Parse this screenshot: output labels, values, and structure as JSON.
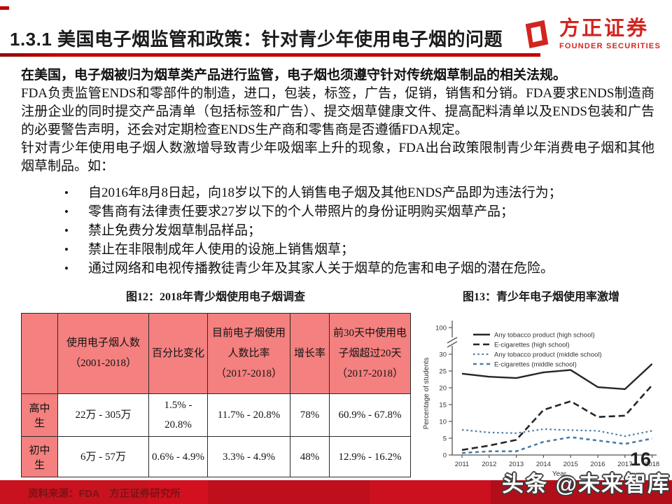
{
  "header": {
    "title": "1.3.1 美国电子烟监管和政策：针对青少年使用电子烟的问题",
    "accent_color": "#c00000",
    "logo": {
      "name": "方正证券",
      "subtitle": "FOUNDER SECURITIES",
      "color": "#d2251f"
    }
  },
  "body": {
    "lead": "在美国，电子烟被归为烟草类产品进行监管，电子烟也须遵守针对传统烟草制品的相关法规。",
    "para1": "FDA负责监管ENDS和零部件的制造，进口，包装，标签，广告，促销，销售和分销。FDA要求ENDS制造商注册企业的同时提交产品清单（包括标签和广告）、提交烟草健康文件、提高配料清单以及ENDS包装和广告的必要警告声明，还会对定期检查ENDS生产商和零售商是否遵循FDA规定。",
    "para2": "针对青少年使用电子烟人数激增导致青少年吸烟率上升的现象，FDA出台政策限制青少年消费电子烟和其他烟草制品。如：",
    "bullets": [
      "自2016年8月8日起，向18岁以下的人销售电子烟及其他ENDS产品即为违法行为；",
      "零售商有法律责任要求27岁以下的个人带照片的身份证明购买烟草产品；",
      "禁止免费分发烟草制品样品；",
      "禁止在非限制成年人使用的设施上销售烟草；",
      "通过网络和电视传播教徒青少年及其家人关于烟草的危害和电子烟的潜在危险。"
    ]
  },
  "figures": {
    "fig12_caption": "图12：2018年青少烟使用电子烟调查",
    "fig13_caption": "图13：青少年电子烟使用率激增"
  },
  "table": {
    "header_bg": "#f4807f",
    "header": [
      "",
      "使用电子烟人数（2001-2018）",
      "百分比变化",
      "目前电子烟使用人数比率（2017-2018）",
      "增长率",
      "前30天中使用电子烟超过20天（2017-2018）"
    ],
    "rows": [
      {
        "label": "高中生",
        "cells": [
          "22万 - 305万",
          "1.5% - 20.8%",
          "11.7% - 20.8%",
          "78%",
          "60.9% - 67.8%"
        ]
      },
      {
        "label": "初中生",
        "cells": [
          "6万 - 57万",
          "0.6% - 4.9%",
          "3.3% - 4.9%",
          "48%",
          "12.9% - 16.2%"
        ]
      }
    ]
  },
  "chart_data": {
    "type": "line",
    "x": [
      2011,
      2012,
      2013,
      2014,
      2015,
      2016,
      2017,
      2018
    ],
    "series": [
      {
        "name": "Any tobacco product (high school)",
        "values": [
          24.2,
          23.3,
          22.9,
          24.6,
          25.3,
          20.2,
          19.6,
          27.1
        ],
        "color": "#262626",
        "style": "solid",
        "width": 2.4
      },
      {
        "name": "E-cigarettes (high school)",
        "values": [
          1.5,
          2.8,
          4.5,
          13.4,
          16.0,
          11.3,
          11.7,
          20.8
        ],
        "color": "#262626",
        "style": "dashed",
        "width": 2.6
      },
      {
        "name": "Any tobacco product (middle school)",
        "values": [
          7.5,
          6.7,
          6.5,
          7.7,
          7.4,
          7.2,
          5.6,
          7.2
        ],
        "color": "#4a7ca6",
        "style": "dotted",
        "width": 2.2
      },
      {
        "name": "E-cigarettes (middle school)",
        "values": [
          0.6,
          1.1,
          1.1,
          3.9,
          5.3,
          4.3,
          3.3,
          4.9
        ],
        "color": "#4a7ca6",
        "style": "dash",
        "width": 2.6
      }
    ],
    "ylabel": "Percentage of students",
    "xlabel": "Year",
    "yticks": [
      0,
      5,
      10,
      15,
      20,
      25,
      30
    ],
    "y_break_top_label": "100",
    "axis_break": true,
    "ylim": [
      0,
      30
    ],
    "grid": false,
    "legend_position": "top-left-inside"
  },
  "footer": {
    "source": "资料来源：FDA　方正证券研究所",
    "band_color": "#c8121f"
  },
  "page_number": "16",
  "watermark": "头条 @未来智库"
}
